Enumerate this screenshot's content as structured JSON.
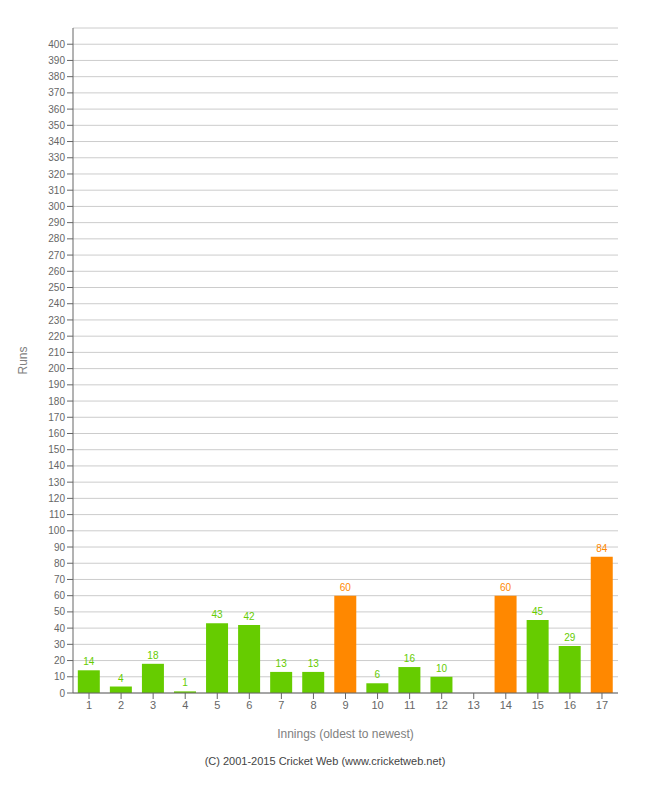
{
  "chart_data": {
    "type": "bar",
    "categories": [
      "1",
      "2",
      "3",
      "4",
      "5",
      "6",
      "7",
      "8",
      "9",
      "10",
      "11",
      "12",
      "13",
      "14",
      "15",
      "16",
      "17"
    ],
    "values": [
      14,
      4,
      18,
      1,
      43,
      42,
      13,
      13,
      60,
      6,
      16,
      10,
      0,
      60,
      45,
      29,
      84
    ],
    "colors": [
      "#66cc00",
      "#66cc00",
      "#66cc00",
      "#66cc00",
      "#66cc00",
      "#66cc00",
      "#66cc00",
      "#66cc00",
      "#ff8800",
      "#66cc00",
      "#66cc00",
      "#66cc00",
      "#66cc00",
      "#ff8800",
      "#66cc00",
      "#66cc00",
      "#ff8800"
    ],
    "xlabel": "Innings (oldest to newest)",
    "ylabel": "Runs",
    "ylim": [
      0,
      410
    ],
    "yticks": [
      0,
      10,
      20,
      30,
      40,
      50,
      60,
      70,
      80,
      90,
      100,
      110,
      120,
      130,
      140,
      150,
      160,
      170,
      180,
      190,
      200,
      210,
      220,
      230,
      240,
      250,
      260,
      270,
      280,
      290,
      300,
      310,
      320,
      330,
      340,
      350,
      360,
      370,
      380,
      390,
      400
    ],
    "grid": true,
    "data_labels": true,
    "annotations": [
      "(C) 2001-2015 Cricket Web (www.cricketweb.net)"
    ]
  }
}
